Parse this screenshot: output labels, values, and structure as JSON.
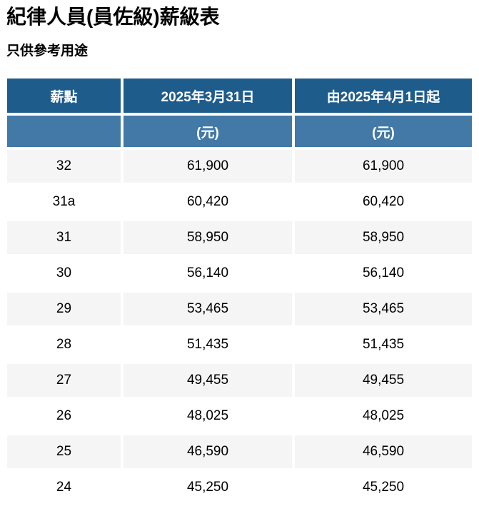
{
  "page": {
    "title": "紀律人員(員佐級)薪級表",
    "subtitle": "只供參考用途"
  },
  "table": {
    "columns": {
      "point": "薪點",
      "before": "2025年3月31日",
      "after": "由2025年4月1日起"
    },
    "units": {
      "point": "",
      "before": "(元)",
      "after": "(元)"
    },
    "rows": [
      {
        "point": "32",
        "before": "61,900",
        "after": "61,900"
      },
      {
        "point": "31a",
        "before": "60,420",
        "after": "60,420"
      },
      {
        "point": "31",
        "before": "58,950",
        "after": "58,950"
      },
      {
        "point": "30",
        "before": "56,140",
        "after": "56,140"
      },
      {
        "point": "29",
        "before": "53,465",
        "after": "53,465"
      },
      {
        "point": "28",
        "before": "51,435",
        "after": "51,435"
      },
      {
        "point": "27",
        "before": "49,455",
        "after": "49,455"
      },
      {
        "point": "26",
        "before": "48,025",
        "after": "48,025"
      },
      {
        "point": "25",
        "before": "46,590",
        "after": "46,590"
      },
      {
        "point": "24",
        "before": "45,250",
        "after": "45,250"
      }
    ]
  },
  "colors": {
    "header_dark_blue": "#1E5C8C",
    "header_light_blue": "#4279A6",
    "row_stripe_gray": "#F5F5F5",
    "row_white": "#FFFFFF",
    "header_text": "#FFFFFF",
    "body_text": "#000000"
  },
  "chart_data": {
    "type": "table",
    "title": "紀律人員(員佐級)薪級表",
    "columns": [
      "薪點",
      "2025年3月31日 (元)",
      "由2025年4月1日起 (元)"
    ],
    "rows": [
      [
        "32",
        61900,
        61900
      ],
      [
        "31a",
        60420,
        60420
      ],
      [
        "31",
        58950,
        58950
      ],
      [
        "30",
        56140,
        56140
      ],
      [
        "29",
        53465,
        53465
      ],
      [
        "28",
        51435,
        51435
      ],
      [
        "27",
        49455,
        49455
      ],
      [
        "26",
        48025,
        48025
      ],
      [
        "25",
        46590,
        46590
      ],
      [
        "24",
        45250,
        45250
      ]
    ]
  }
}
